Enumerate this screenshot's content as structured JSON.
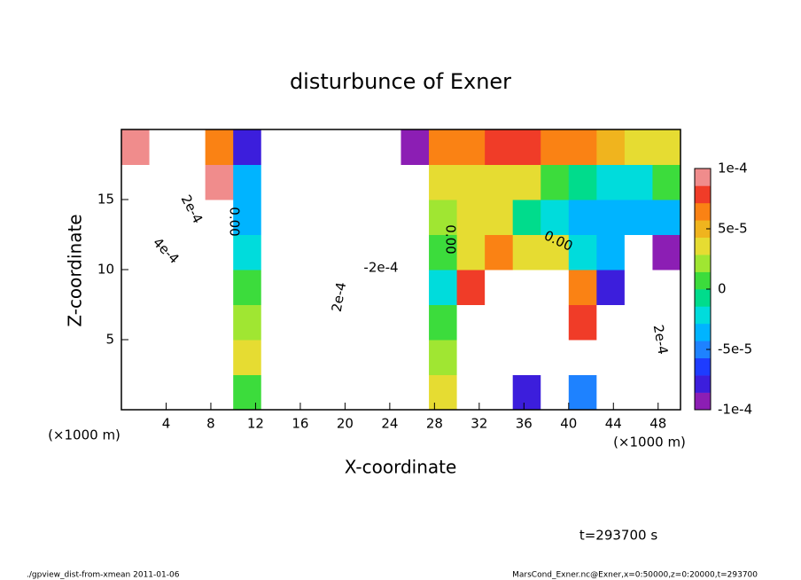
{
  "chart_data": {
    "type": "contourf",
    "title": "disturbunce of Exner",
    "xlabel": "X-coordinate",
    "ylabel": "Z-coordinate",
    "x_unit": "(×1000 m)",
    "time_label": "t=293700 s",
    "footer_left": "./gpview_dist-from-xmean  2011-01-06",
    "footer_right": "MarsCond_Exner.nc@Exner,x=0:50000,z=0:20000,t=293700",
    "xlim": [
      0,
      50
    ],
    "ylim": [
      0,
      20
    ],
    "xticks": [
      4,
      8,
      12,
      16,
      20,
      24,
      28,
      32,
      36,
      40,
      44,
      48
    ],
    "yticks": [
      5,
      10,
      15
    ],
    "x": [
      1.25,
      3.75,
      6.25,
      8.75,
      11.25,
      13.75,
      16.25,
      18.75,
      21.25,
      23.75,
      26.25,
      28.75,
      31.25,
      33.75,
      36.25,
      38.75,
      41.25,
      43.75,
      46.25,
      48.75
    ],
    "y": [
      1.25,
      3.75,
      6.25,
      8.75,
      11.25,
      13.75,
      16.25,
      18.75
    ],
    "z": [
      [
        0.0002,
        0.0003,
        0.0003,
        0.00015,
        0,
        -0.0002,
        -0.0002,
        -0.0002,
        -0.0002,
        -0.0002,
        -0.0002,
        3e-05,
        0.0002,
        0.0002,
        -8e-05,
        0.0002,
        -5e-05,
        -0.0002,
        -0.0002,
        -0.0002
      ],
      [
        0.0002,
        0.0004,
        0.0004,
        0.00015,
        3e-05,
        -0.0002,
        -0.0002,
        -0.0002,
        -0.0002,
        -0.0002,
        -0.0002,
        2e-05,
        0.0002,
        0.0002,
        0.0002,
        0.0002,
        0.0002,
        -0.0002,
        -0.0002,
        -0.0002
      ],
      [
        0.0002,
        0.0004,
        0.0004,
        0.00015,
        2e-05,
        -0.0002,
        -0.00012,
        -0.0002,
        -0.0002,
        -0.0002,
        -0.0002,
        0,
        0.0002,
        0.0002,
        0.0002,
        0.0002,
        8e-05,
        -0.0002,
        -0.0002,
        -0.0002
      ],
      [
        0.0002,
        0.0003,
        0.0003,
        0.00015,
        0,
        -0.0002,
        -0.0002,
        -0.0002,
        -0.0002,
        -0.0002,
        -0.0002,
        -2e-05,
        8e-05,
        0.0002,
        0.0002,
        0.0002,
        6e-05,
        -8e-05,
        -0.0002,
        -0.0002
      ],
      [
        0.0002,
        0.0002,
        0.0002,
        0.00012,
        -2e-05,
        -0.0002,
        -0.0002,
        -0.0002,
        -0.0002,
        -0.0002,
        -0.0002,
        0,
        3e-05,
        6e-05,
        4e-05,
        4e-05,
        -2e-05,
        -3e-05,
        -0.0002,
        -0.0001
      ],
      [
        0.0002,
        0.0002,
        0.00015,
        0.00012,
        -3e-05,
        -0.0002,
        -0.0002,
        -0.0002,
        -0.0002,
        -0.0002,
        -0.00011,
        2e-05,
        3e-05,
        3e-05,
        -1e-05,
        -2e-05,
        -3e-05,
        -4e-05,
        -4e-05,
        -4e-05
      ],
      [
        0.0002,
        0.0002,
        0.0002,
        9e-05,
        -3e-05,
        -0.0002,
        -0.0002,
        -0.0002,
        -0.0002,
        -0.0002,
        -0.0002,
        4e-05,
        3e-05,
        4e-05,
        3e-05,
        0,
        -1e-05,
        -2e-05,
        -2e-05,
        0
      ],
      [
        9e-05,
        0.0002,
        0.00015,
        7e-05,
        -8e-05,
        -0.00012,
        -0.0002,
        -0.0002,
        -0.0002,
        -0.0002,
        -9e-05,
        6e-05,
        6e-05,
        8e-05,
        8e-05,
        7e-05,
        6e-05,
        5e-05,
        4e-05,
        4e-05
      ]
    ],
    "clim": [
      -0.0001,
      0.0001
    ],
    "colors": [
      "#8c1eb4",
      "#3c1edc",
      "#1e3cff",
      "#1e82ff",
      "#00b4ff",
      "#00dcdc",
      "#00dc8c",
      "#3cdc3c",
      "#a0e632",
      "#e6dc32",
      "#f0b41e",
      "#fa8214",
      "#f03c28",
      "#f08c8c"
    ],
    "cticks": [
      {
        "value": 0.0001,
        "label": "1e-4"
      },
      {
        "value": 5e-05,
        "label": "5e-5"
      },
      0,
      {
        "value": -5e-05,
        "label": "-5e-5"
      },
      {
        "value": -0.0001,
        "label": "-1e-4"
      }
    ],
    "annotations": [
      "2e-4",
      "4e-4",
      "0.00",
      "-2e-4",
      "2e-4",
      "0.00",
      "0.00",
      "2e-4"
    ]
  }
}
